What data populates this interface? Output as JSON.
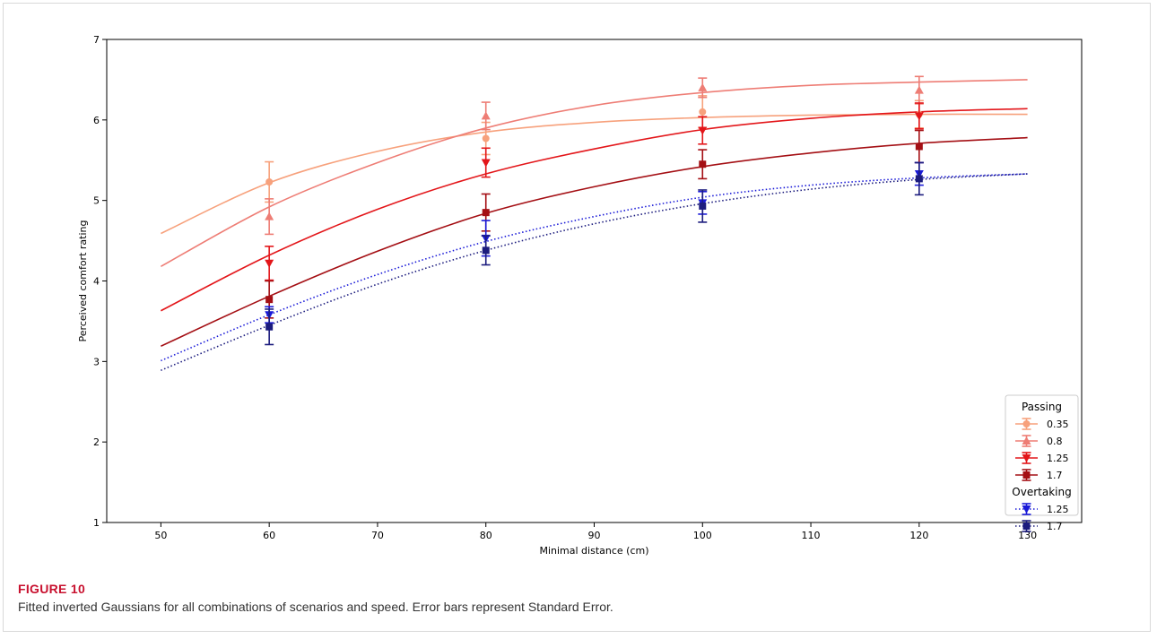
{
  "figure": {
    "label": "FIGURE 10",
    "caption": "Fitted inverted Gaussians for all combinations of scenarios and speed. Error bars represent Standard Error."
  },
  "chart_data": {
    "type": "line",
    "title": "",
    "xlabel": "Minimal distance (cm)",
    "ylabel": "Perceived comfort rating",
    "xlim": [
      45,
      135
    ],
    "ylim": [
      1,
      7
    ],
    "xticks": [
      50,
      60,
      70,
      80,
      90,
      100,
      110,
      120,
      130
    ],
    "yticks": [
      1,
      2,
      3,
      4,
      5,
      6,
      7
    ],
    "grid": false,
    "legend_position": "bottom-right",
    "legend_groups": [
      {
        "title": "Passing",
        "series": [
          0,
          1,
          2,
          3
        ]
      },
      {
        "title": "Overtaking",
        "series": [
          4,
          5
        ]
      }
    ],
    "series": [
      {
        "name": "0.35",
        "color": "#f7a17c",
        "marker": "circle",
        "linestyle": "solid",
        "points": [
          {
            "x": 60,
            "y": 5.23,
            "err": 0.25
          },
          {
            "x": 80,
            "y": 5.77,
            "err": 0.2
          },
          {
            "x": 100,
            "y": 6.1,
            "err": 0.2
          },
          {
            "x": 120,
            "y": 6.07,
            "err": 0.17
          }
        ],
        "fit": {
          "x": [
            50,
            60,
            70,
            80,
            90,
            100,
            110,
            120,
            130
          ],
          "y": [
            4.59,
            5.22,
            5.61,
            5.85,
            5.97,
            6.03,
            6.06,
            6.07,
            6.07
          ]
        }
      },
      {
        "name": "0.8",
        "color": "#ee7d75",
        "marker": "triangle-up",
        "linestyle": "solid",
        "points": [
          {
            "x": 60,
            "y": 4.8,
            "err": 0.22
          },
          {
            "x": 80,
            "y": 6.05,
            "err": 0.17
          },
          {
            "x": 100,
            "y": 6.4,
            "err": 0.12
          },
          {
            "x": 120,
            "y": 6.37,
            "err": 0.17
          }
        ],
        "fit": {
          "x": [
            50,
            60,
            70,
            80,
            90,
            100,
            110,
            120,
            130
          ],
          "y": [
            4.18,
            4.92,
            5.47,
            5.9,
            6.18,
            6.34,
            6.43,
            6.47,
            6.5
          ]
        }
      },
      {
        "name": "1.25",
        "color": "#e3161a",
        "marker": "triangle-down",
        "linestyle": "solid",
        "points": [
          {
            "x": 60,
            "y": 4.22,
            "err": 0.21
          },
          {
            "x": 80,
            "y": 5.47,
            "err": 0.18
          },
          {
            "x": 100,
            "y": 5.87,
            "err": 0.17
          },
          {
            "x": 120,
            "y": 6.05,
            "err": 0.16
          }
        ],
        "fit": {
          "x": [
            50,
            60,
            70,
            80,
            90,
            100,
            110,
            120,
            130
          ],
          "y": [
            3.63,
            4.32,
            4.89,
            5.33,
            5.64,
            5.88,
            6.02,
            6.1,
            6.14
          ]
        }
      },
      {
        "name": "1.7",
        "color": "#a40f14",
        "marker": "square",
        "linestyle": "solid",
        "points": [
          {
            "x": 60,
            "y": 3.77,
            "err": 0.23
          },
          {
            "x": 80,
            "y": 4.85,
            "err": 0.23
          },
          {
            "x": 100,
            "y": 5.45,
            "err": 0.18
          },
          {
            "x": 120,
            "y": 5.67,
            "err": 0.2
          }
        ],
        "fit": {
          "x": [
            50,
            60,
            70,
            80,
            90,
            100,
            110,
            120,
            130
          ],
          "y": [
            3.19,
            3.81,
            4.37,
            4.84,
            5.17,
            5.42,
            5.59,
            5.71,
            5.78
          ]
        }
      },
      {
        "name": "1.25",
        "color": "#1a1ad8",
        "marker": "triangle-down",
        "linestyle": "dotted",
        "points": [
          {
            "x": 60,
            "y": 3.58,
            "err": 0.1
          },
          {
            "x": 80,
            "y": 4.53,
            "err": 0.22
          },
          {
            "x": 100,
            "y": 4.97,
            "err": 0.14
          },
          {
            "x": 120,
            "y": 5.33,
            "err": 0.14
          }
        ],
        "fit": {
          "x": [
            50,
            60,
            70,
            80,
            90,
            100,
            110,
            120,
            130
          ],
          "y": [
            3.01,
            3.58,
            4.08,
            4.49,
            4.8,
            5.04,
            5.19,
            5.28,
            5.33
          ]
        }
      },
      {
        "name": "1.7",
        "color": "#1c1c7e",
        "marker": "square",
        "linestyle": "dotted",
        "points": [
          {
            "x": 60,
            "y": 3.43,
            "err": 0.22
          },
          {
            "x": 80,
            "y": 4.38,
            "err": 0.18
          },
          {
            "x": 100,
            "y": 4.93,
            "err": 0.2
          },
          {
            "x": 120,
            "y": 5.27,
            "err": 0.2
          }
        ],
        "fit": {
          "x": [
            50,
            60,
            70,
            80,
            90,
            100,
            110,
            120,
            130
          ],
          "y": [
            2.89,
            3.45,
            3.96,
            4.38,
            4.71,
            4.96,
            5.14,
            5.26,
            5.33
          ]
        }
      }
    ]
  }
}
